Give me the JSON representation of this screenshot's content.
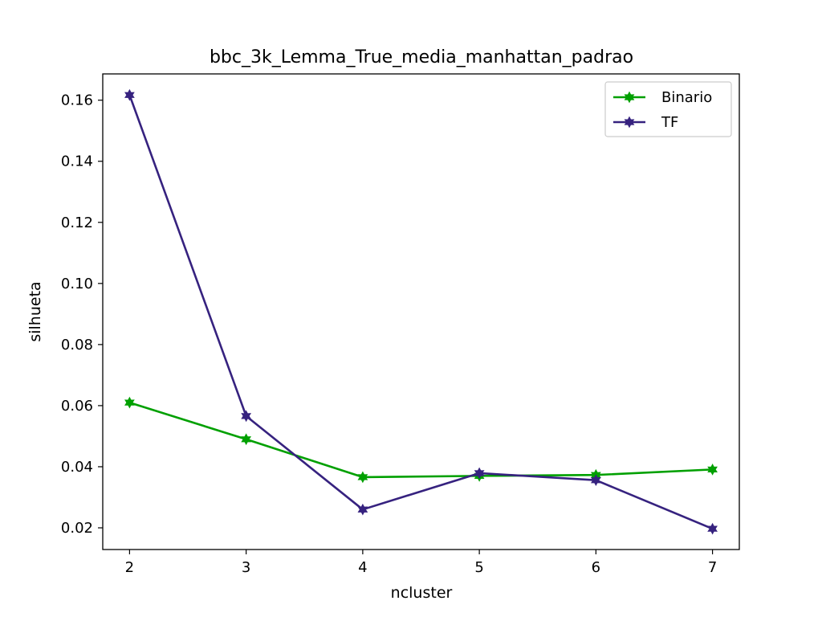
{
  "chart_data": {
    "type": "line",
    "title": "bbc_3k_Lemma_True_media_manhattan_padrao",
    "xlabel": "ncluster",
    "ylabel": "silhueta",
    "x": [
      2,
      3,
      4,
      5,
      6,
      7
    ],
    "xlim": [
      1.77,
      7.23
    ],
    "ylim": [
      0.0129,
      0.1686
    ],
    "xticks": [
      "2",
      "3",
      "4",
      "5",
      "6",
      "7"
    ],
    "yticks": [
      "0.02",
      "0.04",
      "0.06",
      "0.08",
      "0.10",
      "0.12",
      "0.14",
      "0.16"
    ],
    "grid": false,
    "legend_position": "top-right",
    "series": [
      {
        "name": "Binario",
        "color": "#00a000",
        "marker": "star",
        "values": [
          0.061,
          0.049,
          0.0366,
          0.037,
          0.0373,
          0.0391
        ]
      },
      {
        "name": "TF",
        "color": "#36227f",
        "marker": "star",
        "values": [
          0.1617,
          0.0566,
          0.026,
          0.0379,
          0.0356,
          0.0197
        ]
      }
    ]
  }
}
